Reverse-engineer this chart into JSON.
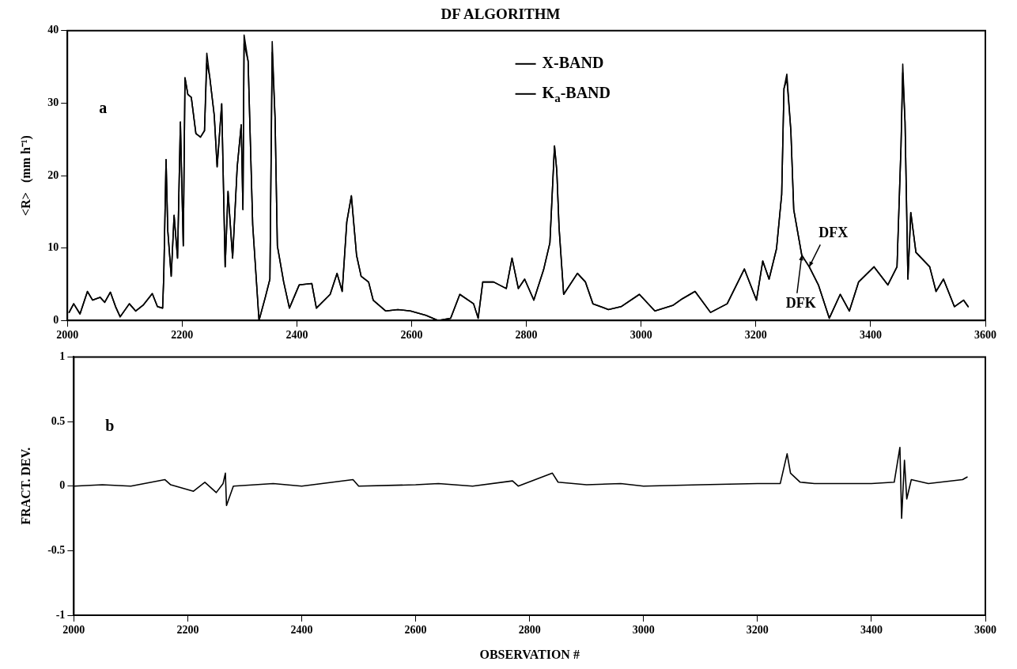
{
  "chart_data": [
    {
      "type": "line",
      "title": "DF ALGORITHM",
      "ylabel": "<R>   (mm h⁻¹)",
      "marker": "none",
      "grid": false,
      "legend": "top",
      "annotations": [
        "a",
        {
          "text": "DFX",
          "x": 3293,
          "y": 7.4
        },
        {
          "text": "DFK",
          "x": 3280,
          "y": 9.0
        }
      ],
      "xlim": [
        2000,
        3600
      ],
      "xticks": [
        2000,
        2200,
        2400,
        2600,
        2800,
        3000,
        3200,
        3400,
        3600
      ],
      "ylim": [
        0,
        40
      ],
      "yticks": [
        0,
        10,
        20,
        30,
        40
      ],
      "x": [
        2003,
        2011,
        2022,
        2035,
        2044,
        2057,
        2065,
        2075,
        2084,
        2092,
        2108,
        2119,
        2132,
        2148,
        2157,
        2166,
        2168,
        2172,
        2175,
        2181,
        2186,
        2192,
        2197,
        2202,
        2205,
        2210,
        2216,
        2224,
        2232,
        2239,
        2243,
        2248,
        2256,
        2261,
        2269,
        2275,
        2280,
        2288,
        2296,
        2303,
        2306,
        2308,
        2315,
        2323,
        2334,
        2345,
        2353,
        2357,
        2362,
        2366,
        2377,
        2387,
        2404,
        2426,
        2434,
        2458,
        2470,
        2479,
        2487,
        2495,
        2504,
        2512,
        2525,
        2533,
        2555,
        2576,
        2598,
        2625,
        2646,
        2668,
        2684,
        2708,
        2716,
        2724,
        2743,
        2765,
        2775,
        2786,
        2797,
        2813,
        2830,
        2841,
        2849,
        2853,
        2857,
        2865,
        2889,
        2903,
        2916,
        2943,
        2965,
        2997,
        3024,
        3056,
        3072,
        3094,
        3121,
        3150,
        3180,
        3201,
        3212,
        3223,
        3236,
        3245,
        3249,
        3254,
        3261,
        3266,
        3280,
        3293,
        3309,
        3328,
        3347,
        3363,
        3379,
        3406,
        3430,
        3446,
        3453,
        3456,
        3460,
        3465,
        3470,
        3479,
        3503,
        3514,
        3527,
        3546,
        3562,
        3570
      ],
      "series": [
        {
          "name": "X-BAND",
          "color": "#000000",
          "values": [
            1.1,
            2.3,
            0.9,
            4.0,
            2.8,
            3.2,
            2.5,
            3.9,
            1.9,
            0.5,
            2.3,
            1.3,
            2.1,
            3.7,
            1.9,
            1.7,
            6.1,
            22.2,
            12.4,
            6.1,
            14.5,
            8.6,
            27.4,
            10.3,
            33.5,
            31.2,
            30.8,
            25.8,
            25.3,
            26.2,
            36.9,
            33.7,
            28.3,
            21.2,
            29.9,
            7.4,
            17.8,
            8.6,
            21.2,
            27.0,
            15.3,
            39.4,
            35.8,
            13.2,
            0,
            3.2,
            5.7,
            38.5,
            27.9,
            10.3,
            5.3,
            1.7,
            4.9,
            5.1,
            1.7,
            3.6,
            6.5,
            4.0,
            13.6,
            17.2,
            9.0,
            6.1,
            5.3,
            2.8,
            1.3,
            1.5,
            1.3,
            0.7,
            0,
            0.3,
            3.6,
            2.3,
            0.3,
            5.3,
            5.3,
            4.4,
            8.6,
            4.4,
            5.7,
            2.8,
            7.0,
            10.7,
            24.1,
            20.7,
            12.8,
            3.6,
            6.5,
            5.3,
            2.3,
            1.5,
            1.9,
            3.6,
            1.3,
            2.1,
            3.0,
            4.0,
            1.1,
            2.3,
            7.1,
            2.8,
            8.2,
            5.7,
            9.9,
            17.4,
            32.0,
            33.3,
            26.2,
            15.3,
            9.0,
            7.4,
            4.9,
            0.3,
            3.6,
            1.3,
            5.3,
            7.4,
            4.9,
            7.4,
            24.1,
            35.4,
            27.4,
            5.7,
            14.9,
            9.4,
            7.4,
            4.0,
            5.7,
            1.9,
            2.8,
            1.9
          ]
        },
        {
          "name": "K$_{a}$-BAND",
          "color": "#000000",
          "values": [
            1.1,
            2.3,
            0.9,
            4.0,
            2.8,
            3.2,
            2.5,
            3.9,
            1.9,
            0.5,
            2.3,
            1.3,
            2.1,
            3.7,
            1.9,
            1.7,
            6.1,
            22.2,
            12.4,
            6.1,
            14.5,
            8.6,
            27.4,
            10.3,
            33.5,
            31.2,
            30.8,
            25.8,
            25.3,
            26.2,
            35.5,
            33.7,
            28.3,
            21.2,
            29.9,
            7.4,
            17.8,
            8.6,
            21.2,
            27.0,
            15.3,
            38.2,
            35.8,
            13.2,
            0,
            3.2,
            5.7,
            37.0,
            27.9,
            10.3,
            5.3,
            1.7,
            4.9,
            5.1,
            1.7,
            3.6,
            6.5,
            4.0,
            13.6,
            17.2,
            9.0,
            6.1,
            5.3,
            2.8,
            1.3,
            1.5,
            1.3,
            0.7,
            0,
            0.3,
            3.6,
            2.3,
            0.3,
            5.3,
            5.3,
            4.4,
            8.6,
            4.4,
            5.7,
            2.8,
            7.0,
            10.7,
            24.1,
            20.7,
            12.8,
            3.6,
            6.5,
            5.3,
            2.3,
            1.5,
            1.9,
            3.6,
            1.3,
            2.1,
            3.0,
            4.0,
            1.1,
            2.3,
            7.1,
            2.8,
            8.2,
            5.7,
            9.9,
            17.4,
            32.0,
            34.0,
            26.2,
            15.3,
            9.0,
            7.4,
            4.9,
            0.3,
            3.6,
            1.3,
            5.3,
            7.4,
            4.9,
            7.4,
            24.1,
            34.2,
            27.4,
            5.7,
            14.9,
            9.4,
            7.4,
            4.0,
            5.7,
            1.9,
            2.8,
            1.9
          ]
        }
      ]
    },
    {
      "type": "line",
      "xlabel": "OBSERVATION #",
      "ylabel": "FRACT. DEV.",
      "marker": "none",
      "grid": false,
      "annotations": [
        "b"
      ],
      "xlim": [
        2000,
        3600
      ],
      "xticks": [
        2000,
        2200,
        2400,
        2600,
        2800,
        3000,
        3200,
        3400,
        3600
      ],
      "ylim": [
        -1,
        1
      ],
      "yticks": [
        -1,
        -0.5,
        0,
        0.5,
        1
      ],
      "x": [
        2000,
        2050,
        2100,
        2160,
        2170,
        2210,
        2230,
        2250,
        2262,
        2266,
        2268,
        2280,
        2350,
        2400,
        2490,
        2500,
        2600,
        2640,
        2700,
        2770,
        2780,
        2840,
        2850,
        2900,
        2960,
        3000,
        3100,
        3200,
        3240,
        3252,
        3258,
        3275,
        3300,
        3400,
        3440,
        3450,
        3453,
        3458,
        3462,
        3470,
        3500,
        3560,
        3568
      ],
      "series": [
        {
          "color": "#000000",
          "values": [
            0,
            0.01,
            0,
            0.05,
            0.01,
            -0.04,
            0.03,
            -0.05,
            0.02,
            0.1,
            -0.15,
            0,
            0.02,
            0,
            0.05,
            0,
            0.01,
            0.02,
            0,
            0.04,
            0,
            0.1,
            0.03,
            0.01,
            0.02,
            0,
            0.01,
            0.02,
            0.02,
            0.25,
            0.1,
            0.03,
            0.02,
            0.02,
            0.03,
            0.3,
            -0.25,
            0.2,
            -0.1,
            0.05,
            0.02,
            0.05,
            0.07
          ]
        }
      ]
    }
  ]
}
